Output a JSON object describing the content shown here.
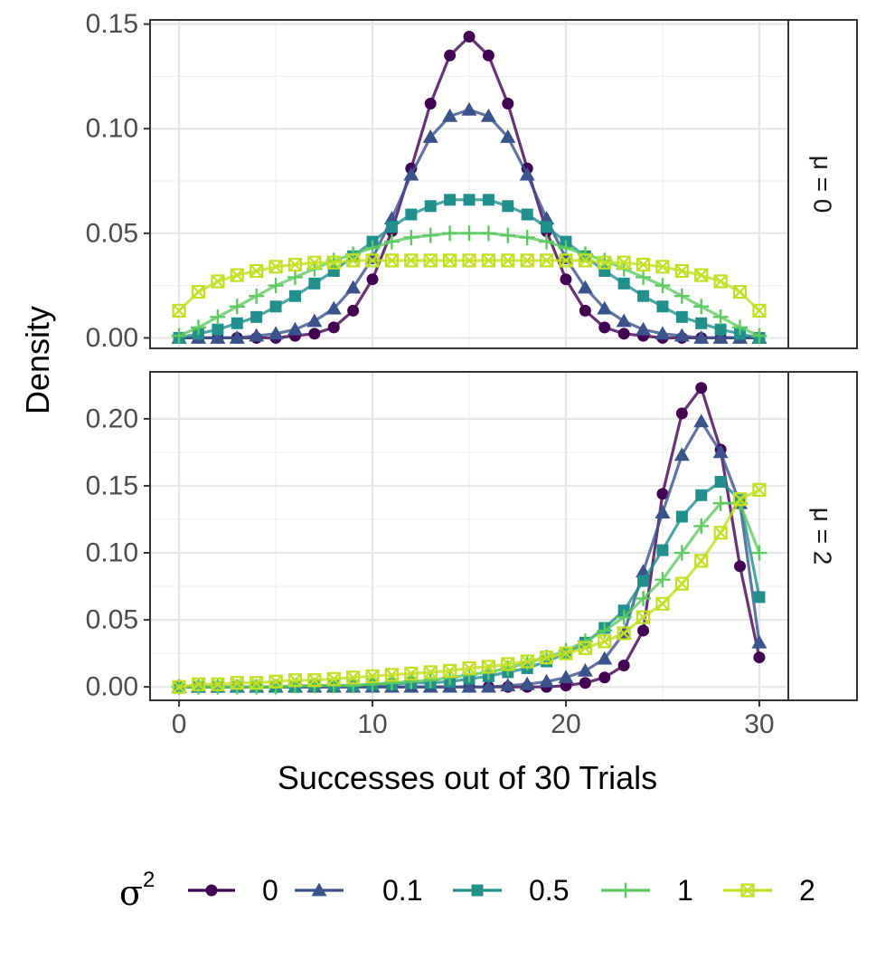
{
  "chart_data": {
    "type": "line",
    "xlabel": "Successes out of 30 Trials",
    "ylabel": "Density",
    "xlim": [
      -1.5,
      31.5
    ],
    "x_ticks": [
      0,
      10,
      20,
      30
    ],
    "x_tick_labels": [
      "0",
      "10",
      "20",
      "30"
    ],
    "legend": {
      "title_symbol": "σ",
      "title_superscript": "2",
      "position": "bottom",
      "entries": [
        "0",
        "0.1",
        "0.5",
        "1",
        "2"
      ]
    },
    "series_styles": [
      {
        "name": "0",
        "color": "#440154",
        "marker": "circle"
      },
      {
        "name": "0.1",
        "color": "#3b528b",
        "marker": "triangle"
      },
      {
        "name": "0.5",
        "color": "#21908c",
        "marker": "square"
      },
      {
        "name": "1",
        "color": "#5ec962",
        "marker": "plus"
      },
      {
        "name": "2",
        "color": "#c2df23",
        "marker": "boxx"
      }
    ],
    "panels": [
      {
        "strip_label": "μ = 0",
        "ylim": [
          -0.005,
          0.152
        ],
        "y_ticks": [
          0.0,
          0.05,
          0.1,
          0.15
        ],
        "y_tick_labels": [
          "0.00",
          "0.05",
          "0.10",
          "0.15"
        ],
        "x": [
          0,
          1,
          2,
          3,
          4,
          5,
          6,
          7,
          8,
          9,
          10,
          11,
          12,
          13,
          14,
          15,
          16,
          17,
          18,
          19,
          20,
          21,
          22,
          23,
          24,
          25,
          26,
          27,
          28,
          29,
          30
        ],
        "series": [
          {
            "name": "0",
            "values": [
              0.0,
              0.0,
              0.0,
              0.0,
              0.0,
              0.0,
              0.001,
              0.002,
              0.005,
              0.013,
              0.028,
              0.051,
              0.081,
              0.112,
              0.135,
              0.144,
              0.135,
              0.112,
              0.081,
              0.051,
              0.028,
              0.013,
              0.005,
              0.002,
              0.001,
              0.0,
              0.0,
              0.0,
              0.0,
              0.0,
              0.0
            ]
          },
          {
            "name": "0.1",
            "values": [
              0.0,
              0.0,
              0.0,
              0.0,
              0.001,
              0.002,
              0.004,
              0.008,
              0.014,
              0.024,
              0.038,
              0.057,
              0.078,
              0.096,
              0.106,
              0.109,
              0.106,
              0.096,
              0.078,
              0.057,
              0.038,
              0.024,
              0.014,
              0.008,
              0.004,
              0.002,
              0.001,
              0.0,
              0.0,
              0.0,
              0.0
            ]
          },
          {
            "name": "0.5",
            "values": [
              0.0,
              0.002,
              0.004,
              0.007,
              0.01,
              0.015,
              0.02,
              0.026,
              0.032,
              0.039,
              0.046,
              0.053,
              0.059,
              0.063,
              0.066,
              0.066,
              0.066,
              0.063,
              0.059,
              0.053,
              0.046,
              0.039,
              0.032,
              0.026,
              0.02,
              0.015,
              0.01,
              0.007,
              0.004,
              0.002,
              0.0
            ]
          },
          {
            "name": "1",
            "values": [
              0.001,
              0.005,
              0.01,
              0.015,
              0.02,
              0.025,
              0.029,
              0.033,
              0.037,
              0.04,
              0.043,
              0.046,
              0.048,
              0.049,
              0.05,
              0.05,
              0.05,
              0.049,
              0.048,
              0.046,
              0.043,
              0.04,
              0.037,
              0.033,
              0.029,
              0.025,
              0.02,
              0.015,
              0.01,
              0.005,
              0.001
            ]
          },
          {
            "name": "2",
            "values": [
              0.013,
              0.022,
              0.027,
              0.03,
              0.032,
              0.034,
              0.035,
              0.036,
              0.036,
              0.037,
              0.037,
              0.037,
              0.037,
              0.037,
              0.037,
              0.037,
              0.037,
              0.037,
              0.037,
              0.037,
              0.037,
              0.037,
              0.036,
              0.036,
              0.035,
              0.034,
              0.032,
              0.03,
              0.027,
              0.022,
              0.013
            ]
          }
        ]
      },
      {
        "strip_label": "μ = 2",
        "ylim": [
          -0.01,
          0.235
        ],
        "y_ticks": [
          0.0,
          0.05,
          0.1,
          0.15,
          0.2
        ],
        "y_tick_labels": [
          "0.00",
          "0.05",
          "0.10",
          "0.15",
          "0.20"
        ],
        "x": [
          0,
          1,
          2,
          3,
          4,
          5,
          6,
          7,
          8,
          9,
          10,
          11,
          12,
          13,
          14,
          15,
          16,
          17,
          18,
          19,
          20,
          21,
          22,
          23,
          24,
          25,
          26,
          27,
          28,
          29,
          30
        ],
        "series": [
          {
            "name": "0",
            "values": [
              0.0,
              0.0,
              0.0,
              0.0,
              0.0,
              0.0,
              0.0,
              0.0,
              0.0,
              0.0,
              0.0,
              0.0,
              0.0,
              0.0,
              0.0,
              0.0,
              0.0,
              0.0,
              0.0,
              0.0,
              0.001,
              0.003,
              0.007,
              0.016,
              0.042,
              0.144,
              0.204,
              0.223,
              0.177,
              0.09,
              0.022
            ]
          },
          {
            "name": "0.1",
            "values": [
              0.0,
              0.0,
              0.0,
              0.0,
              0.0,
              0.0,
              0.0,
              0.0,
              0.0,
              0.0,
              0.0,
              0.0,
              0.0,
              0.0,
              0.0,
              0.0,
              0.0,
              0.001,
              0.002,
              0.004,
              0.007,
              0.012,
              0.021,
              0.04,
              0.086,
              0.13,
              0.173,
              0.198,
              0.175,
              0.137,
              0.033
            ]
          },
          {
            "name": "0.5",
            "values": [
              0.0,
              0.0,
              0.0,
              0.0,
              0.0,
              0.0,
              0.0,
              0.001,
              0.001,
              0.001,
              0.002,
              0.002,
              0.003,
              0.003,
              0.004,
              0.006,
              0.008,
              0.011,
              0.014,
              0.019,
              0.025,
              0.033,
              0.044,
              0.057,
              0.079,
              0.102,
              0.127,
              0.143,
              0.153,
              0.14,
              0.067
            ]
          },
          {
            "name": "1",
            "values": [
              0.0,
              0.0,
              0.0,
              0.0,
              0.0,
              0.0,
              0.001,
              0.001,
              0.001,
              0.001,
              0.002,
              0.003,
              0.004,
              0.005,
              0.007,
              0.009,
              0.011,
              0.014,
              0.018,
              0.022,
              0.027,
              0.034,
              0.042,
              0.052,
              0.066,
              0.08,
              0.1,
              0.12,
              0.137,
              0.137,
              0.1
            ]
          },
          {
            "name": "2",
            "values": [
              0.0,
              0.002,
              0.002,
              0.003,
              0.003,
              0.004,
              0.005,
              0.005,
              0.006,
              0.007,
              0.008,
              0.009,
              0.01,
              0.011,
              0.012,
              0.014,
              0.015,
              0.017,
              0.019,
              0.022,
              0.025,
              0.029,
              0.034,
              0.04,
              0.052,
              0.062,
              0.077,
              0.094,
              0.115,
              0.14,
              0.147
            ]
          }
        ]
      }
    ]
  }
}
